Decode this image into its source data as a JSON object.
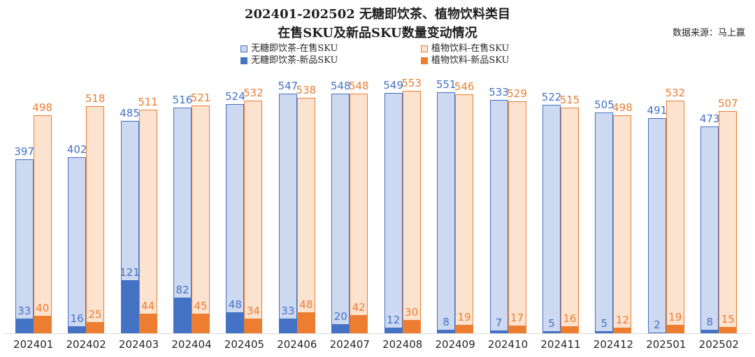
{
  "title": {
    "line1": "202401-202502 无糖即饮茶、植物饮料类目",
    "line2": "在售SKU及新品SKU数量变动情况"
  },
  "source": "数据来源：马上赢",
  "legend": [
    {
      "label": "无糖即饮茶-在售SKU",
      "swatch": "tea-light"
    },
    {
      "label": "植物饮料-在售SKU",
      "swatch": "plant-light"
    },
    {
      "label": "无糖即饮茶-新品SKU",
      "swatch": "tea-dark"
    },
    {
      "label": "植物饮料-新品SKU",
      "swatch": "plant-dark"
    }
  ],
  "colors": {
    "tea_fill": "#cdd8f1",
    "tea_stroke": "#4472c4",
    "plant_fill": "#fbe3d0",
    "plant_stroke": "#ed7d31",
    "axis": "#d9d9d9"
  },
  "chart_data": {
    "type": "bar",
    "title": "202401-202502 无糖即饮茶、植物饮料类目 在售SKU及新品SKU数量变动情况",
    "categories": [
      "202401",
      "202402",
      "202403",
      "202404",
      "202405",
      "202406",
      "202407",
      "202408",
      "202409",
      "202410",
      "202411",
      "202412",
      "202501",
      "202502"
    ],
    "series": [
      {
        "name": "无糖即饮茶-在售SKU",
        "values": [
          397,
          402,
          485,
          516,
          524,
          547,
          548,
          549,
          551,
          533,
          522,
          505,
          491,
          473
        ]
      },
      {
        "name": "无糖即饮茶-新品SKU",
        "values": [
          33,
          16,
          121,
          82,
          48,
          33,
          20,
          12,
          8,
          7,
          5,
          5,
          2,
          8
        ]
      },
      {
        "name": "植物饮料-在售SKU",
        "values": [
          498,
          518,
          511,
          521,
          532,
          538,
          548,
          553,
          546,
          529,
          515,
          498,
          532,
          507
        ]
      },
      {
        "name": "植物饮料-新品SKU",
        "values": [
          40,
          25,
          44,
          45,
          34,
          48,
          42,
          30,
          19,
          17,
          16,
          12,
          19,
          15
        ]
      }
    ],
    "ylim": [
      0,
      600
    ],
    "grid": false,
    "legend_position": "top",
    "xlabel": "",
    "ylabel": ""
  }
}
